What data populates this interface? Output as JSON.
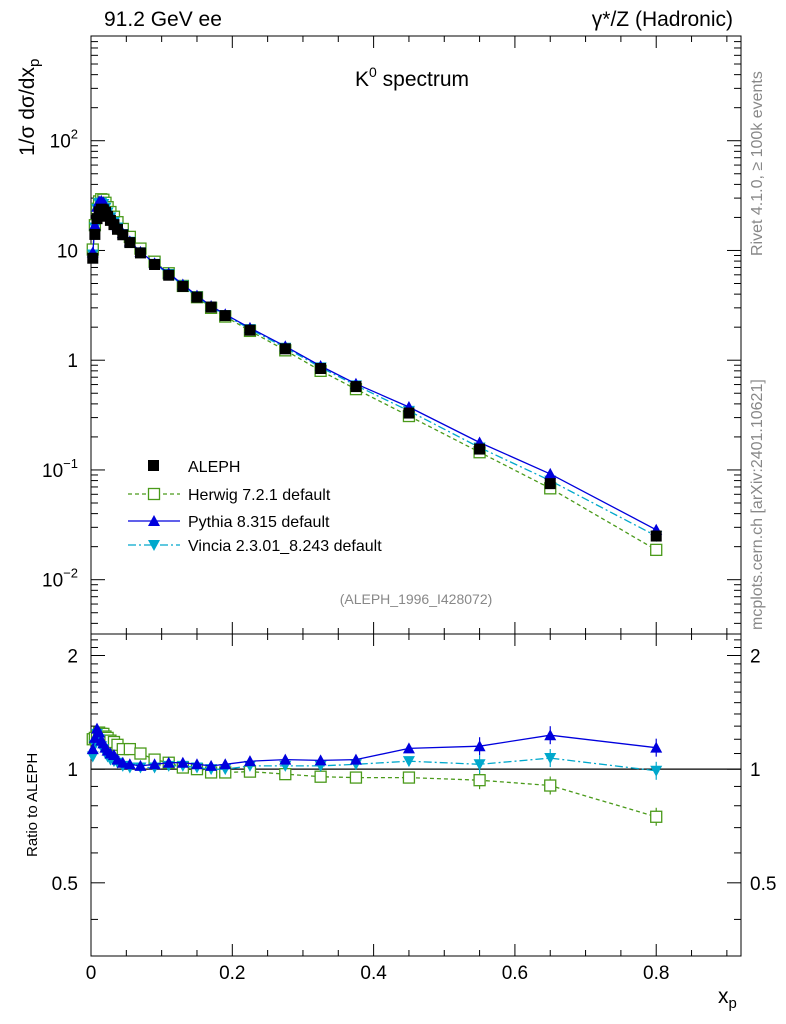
{
  "header": {
    "left": "91.2 GeV ee",
    "right": "γ*/Z (Hadronic)"
  },
  "side_labels": {
    "rivet": "Rivet 4.1.0, ≥ 100k events",
    "mcplots": "mcplots.cern.ch [arXiv:2401.10621]"
  },
  "chart_data": {
    "type": "scatter",
    "title": "K0 spectrum",
    "title_main": "K",
    "title_sup": "0",
    "title_rest": " spectrum",
    "analysis_tag": "(ALEPH_1996_I428072)",
    "xlabel": "x_p",
    "xlabel_main": "x",
    "xlabel_sub": "p",
    "ylabel_main": "1/σ  dσ/dx",
    "ylabel_sub": "p",
    "ratio_ylabel": "Ratio to ALEPH",
    "xlim": [
      0,
      0.92
    ],
    "ylim": [
      0.0032,
      900
    ],
    "ratio_ylim": [
      0.32,
      2.28
    ],
    "x_ticks": [
      "0",
      "0.2",
      "0.4",
      "0.6",
      "0.8"
    ],
    "y_tick_labels": {
      "e-2": "10",
      "e-2_exp": "−2",
      "e-1": "10",
      "e-1_exp": "−1",
      "e0": "1",
      "e1": "10",
      "e2": "10",
      "e2_exp": "2"
    },
    "ratio_ticks": [
      "0.5",
      "1",
      "2"
    ],
    "legend": [
      "ALEPH",
      "Herwig 7.2.1 default",
      "Pythia 8.315 default",
      "Vincia 2.3.01_8.243 default"
    ],
    "x": [
      0.0025,
      0.0055,
      0.0085,
      0.0115,
      0.0145,
      0.0175,
      0.0205,
      0.0235,
      0.0275,
      0.0325,
      0.0375,
      0.045,
      0.055,
      0.07,
      0.09,
      0.11,
      0.13,
      0.15,
      0.17,
      0.19,
      0.225,
      0.275,
      0.325,
      0.375,
      0.45,
      0.55,
      0.65,
      0.8
    ],
    "series": [
      {
        "name": "ALEPH",
        "color": "#000000",
        "values": [
          8.5,
          14.0,
          19.5,
          22.5,
          23.8,
          23.5,
          22.3,
          20.5,
          18.8,
          17.2,
          15.6,
          13.9,
          11.8,
          9.5,
          7.45,
          5.95,
          4.7,
          3.75,
          3.05,
          2.55,
          1.88,
          1.27,
          0.84,
          0.575,
          0.33,
          0.155,
          0.075,
          0.025
        ],
        "ratio": [
          1,
          1,
          1,
          1,
          1,
          1,
          1,
          1,
          1,
          1,
          1,
          1,
          1,
          1,
          1,
          1,
          1,
          1,
          1,
          1,
          1,
          1,
          1,
          1,
          1,
          1,
          1,
          1
        ]
      },
      {
        "name": "Herwig 7.2.1 default",
        "color": "#4a9a1a",
        "values": [
          10.2,
          17.0,
          24.0,
          28.0,
          29.3,
          29.0,
          27.2,
          24.8,
          22.4,
          20.3,
          18.1,
          15.7,
          13.3,
          10.4,
          7.9,
          6.2,
          4.75,
          3.75,
          3.0,
          2.5,
          1.85,
          1.23,
          0.8,
          0.545,
          0.31,
          0.145,
          0.068,
          0.0187
        ],
        "ratio": [
          1.2,
          1.21,
          1.23,
          1.25,
          1.24,
          1.24,
          1.22,
          1.21,
          1.19,
          1.18,
          1.16,
          1.13,
          1.13,
          1.1,
          1.06,
          1.04,
          1.01,
          1.0,
          0.98,
          0.98,
          0.985,
          0.97,
          0.955,
          0.95,
          0.95,
          0.935,
          0.905,
          0.748
        ]
      },
      {
        "name": "Pythia 8.315 default",
        "color": "#0000dd",
        "values": [
          9.6,
          17.0,
          25.0,
          28.0,
          28.3,
          27.5,
          25.5,
          23.0,
          20.8,
          18.8,
          16.6,
          14.4,
          12.1,
          9.7,
          7.65,
          6.2,
          4.9,
          3.88,
          3.12,
          2.62,
          1.97,
          1.34,
          0.885,
          0.61,
          0.375,
          0.178,
          0.092,
          0.0285
        ],
        "ratio": [
          1.13,
          1.21,
          1.28,
          1.25,
          1.19,
          1.17,
          1.14,
          1.12,
          1.1,
          1.09,
          1.06,
          1.04,
          1.03,
          1.02,
          1.03,
          1.04,
          1.04,
          1.03,
          1.02,
          1.03,
          1.05,
          1.06,
          1.055,
          1.06,
          1.135,
          1.15,
          1.23,
          1.14
        ]
      },
      {
        "name": "Vincia 2.3.01_8.243 default",
        "color": "#00a8cc",
        "values": [
          9.2,
          16.2,
          24.0,
          27.0,
          27.3,
          26.5,
          24.5,
          22.2,
          20.0,
          18.1,
          16.2,
          14.1,
          12.0,
          9.6,
          7.55,
          6.1,
          4.8,
          3.8,
          3.07,
          2.57,
          1.92,
          1.3,
          0.86,
          0.59,
          0.345,
          0.16,
          0.08,
          0.025
        ],
        "ratio": [
          1.08,
          1.16,
          1.24,
          1.2,
          1.15,
          1.13,
          1.1,
          1.08,
          1.06,
          1.05,
          1.04,
          1.02,
          1.01,
          1.01,
          1.01,
          1.02,
          1.02,
          1.01,
          1.0,
          1.0,
          1.02,
          1.02,
          1.02,
          1.03,
          1.05,
          1.03,
          1.07,
          0.99
        ]
      }
    ]
  }
}
